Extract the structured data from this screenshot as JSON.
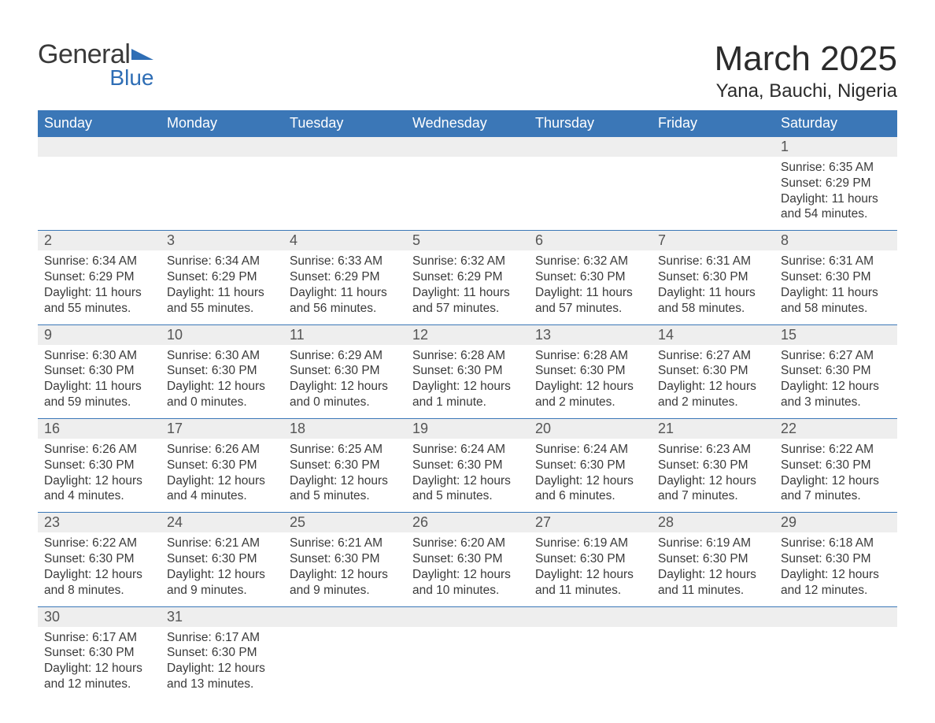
{
  "logo": {
    "text_general": "General",
    "text_blue": "Blue",
    "flag_color": "#2f6eb5"
  },
  "header": {
    "month_title": "March 2025",
    "location": "Yana, Bauchi, Nigeria"
  },
  "table": {
    "header_bg": "#3b77b7",
    "header_fg": "#ffffff",
    "daynum_bg": "#eeeeee",
    "border_color": "#3b77b7",
    "text_color": "#3a3a3a",
    "font_size_header": 18,
    "font_size_daynum": 18,
    "font_size_detail": 15.5
  },
  "columns": [
    "Sunday",
    "Monday",
    "Tuesday",
    "Wednesday",
    "Thursday",
    "Friday",
    "Saturday"
  ],
  "weeks": [
    [
      null,
      null,
      null,
      null,
      null,
      null,
      {
        "n": "1",
        "sr": "6:35 AM",
        "ss": "6:29 PM",
        "dl": "11 hours and 54 minutes."
      }
    ],
    [
      {
        "n": "2",
        "sr": "6:34 AM",
        "ss": "6:29 PM",
        "dl": "11 hours and 55 minutes."
      },
      {
        "n": "3",
        "sr": "6:34 AM",
        "ss": "6:29 PM",
        "dl": "11 hours and 55 minutes."
      },
      {
        "n": "4",
        "sr": "6:33 AM",
        "ss": "6:29 PM",
        "dl": "11 hours and 56 minutes."
      },
      {
        "n": "5",
        "sr": "6:32 AM",
        "ss": "6:29 PM",
        "dl": "11 hours and 57 minutes."
      },
      {
        "n": "6",
        "sr": "6:32 AM",
        "ss": "6:30 PM",
        "dl": "11 hours and 57 minutes."
      },
      {
        "n": "7",
        "sr": "6:31 AM",
        "ss": "6:30 PM",
        "dl": "11 hours and 58 minutes."
      },
      {
        "n": "8",
        "sr": "6:31 AM",
        "ss": "6:30 PM",
        "dl": "11 hours and 58 minutes."
      }
    ],
    [
      {
        "n": "9",
        "sr": "6:30 AM",
        "ss": "6:30 PM",
        "dl": "11 hours and 59 minutes."
      },
      {
        "n": "10",
        "sr": "6:30 AM",
        "ss": "6:30 PM",
        "dl": "12 hours and 0 minutes."
      },
      {
        "n": "11",
        "sr": "6:29 AM",
        "ss": "6:30 PM",
        "dl": "12 hours and 0 minutes."
      },
      {
        "n": "12",
        "sr": "6:28 AM",
        "ss": "6:30 PM",
        "dl": "12 hours and 1 minute."
      },
      {
        "n": "13",
        "sr": "6:28 AM",
        "ss": "6:30 PM",
        "dl": "12 hours and 2 minutes."
      },
      {
        "n": "14",
        "sr": "6:27 AM",
        "ss": "6:30 PM",
        "dl": "12 hours and 2 minutes."
      },
      {
        "n": "15",
        "sr": "6:27 AM",
        "ss": "6:30 PM",
        "dl": "12 hours and 3 minutes."
      }
    ],
    [
      {
        "n": "16",
        "sr": "6:26 AM",
        "ss": "6:30 PM",
        "dl": "12 hours and 4 minutes."
      },
      {
        "n": "17",
        "sr": "6:26 AM",
        "ss": "6:30 PM",
        "dl": "12 hours and 4 minutes."
      },
      {
        "n": "18",
        "sr": "6:25 AM",
        "ss": "6:30 PM",
        "dl": "12 hours and 5 minutes."
      },
      {
        "n": "19",
        "sr": "6:24 AM",
        "ss": "6:30 PM",
        "dl": "12 hours and 5 minutes."
      },
      {
        "n": "20",
        "sr": "6:24 AM",
        "ss": "6:30 PM",
        "dl": "12 hours and 6 minutes."
      },
      {
        "n": "21",
        "sr": "6:23 AM",
        "ss": "6:30 PM",
        "dl": "12 hours and 7 minutes."
      },
      {
        "n": "22",
        "sr": "6:22 AM",
        "ss": "6:30 PM",
        "dl": "12 hours and 7 minutes."
      }
    ],
    [
      {
        "n": "23",
        "sr": "6:22 AM",
        "ss": "6:30 PM",
        "dl": "12 hours and 8 minutes."
      },
      {
        "n": "24",
        "sr": "6:21 AM",
        "ss": "6:30 PM",
        "dl": "12 hours and 9 minutes."
      },
      {
        "n": "25",
        "sr": "6:21 AM",
        "ss": "6:30 PM",
        "dl": "12 hours and 9 minutes."
      },
      {
        "n": "26",
        "sr": "6:20 AM",
        "ss": "6:30 PM",
        "dl": "12 hours and 10 minutes."
      },
      {
        "n": "27",
        "sr": "6:19 AM",
        "ss": "6:30 PM",
        "dl": "12 hours and 11 minutes."
      },
      {
        "n": "28",
        "sr": "6:19 AM",
        "ss": "6:30 PM",
        "dl": "12 hours and 11 minutes."
      },
      {
        "n": "29",
        "sr": "6:18 AM",
        "ss": "6:30 PM",
        "dl": "12 hours and 12 minutes."
      }
    ],
    [
      {
        "n": "30",
        "sr": "6:17 AM",
        "ss": "6:30 PM",
        "dl": "12 hours and 12 minutes."
      },
      {
        "n": "31",
        "sr": "6:17 AM",
        "ss": "6:30 PM",
        "dl": "12 hours and 13 minutes."
      },
      null,
      null,
      null,
      null,
      null
    ]
  ],
  "labels": {
    "sunrise": "Sunrise: ",
    "sunset": "Sunset: ",
    "daylight": "Daylight: "
  }
}
